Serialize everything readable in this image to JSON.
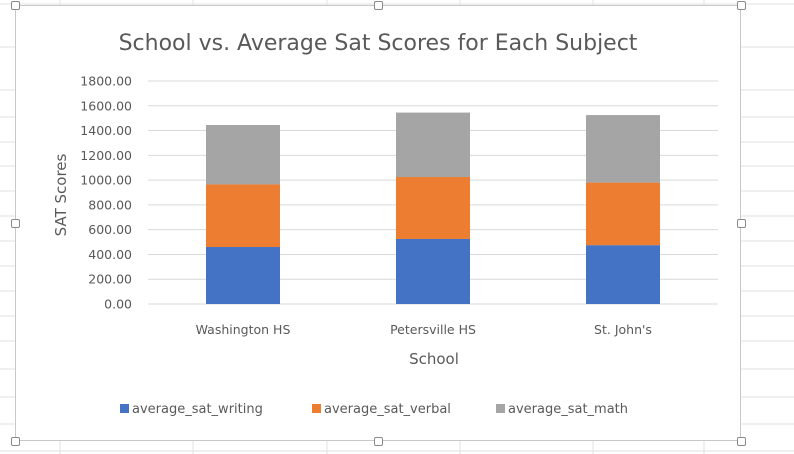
{
  "chart_data": {
    "type": "bar",
    "stacked": true,
    "title": "School vs. Average Sat Scores for Each Subject",
    "xlabel": "School",
    "ylabel": "SAT Scores",
    "categories": [
      "Washington HS",
      "Petersville HS",
      "St. John's"
    ],
    "series": [
      {
        "name": "average_sat_writing",
        "color": "#4472c4",
        "values": [
          460,
          525,
          475
        ]
      },
      {
        "name": "average_sat_verbal",
        "color": "#ed7d31",
        "values": [
          505,
          500,
          505
        ]
      },
      {
        "name": "average_sat_math",
        "color": "#a5a5a5",
        "values": [
          480,
          520,
          545
        ]
      }
    ],
    "ylim": [
      0,
      1800
    ],
    "yticks": [
      "0.00",
      "200.00",
      "400.00",
      "600.00",
      "800.00",
      "1000.00",
      "1200.00",
      "1400.00",
      "1600.00",
      "1800.00"
    ],
    "grid": true,
    "legend": "bottom"
  },
  "colors": {
    "gridline": "#d9d9d9",
    "sheet_gridline": "#e2e2e2"
  }
}
